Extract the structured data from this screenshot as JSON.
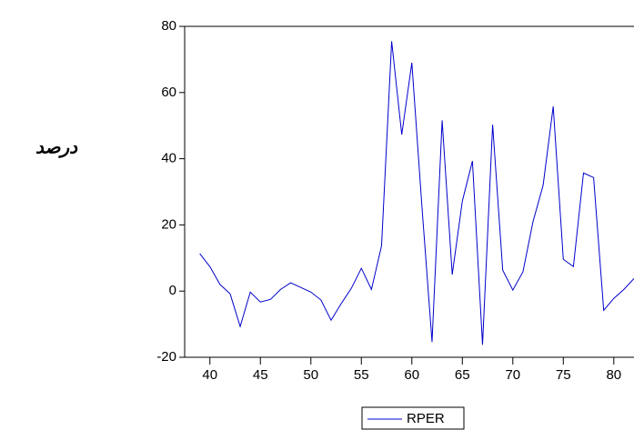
{
  "chart_data": {
    "type": "line",
    "y_label": "درصد",
    "x": [
      39,
      40,
      41,
      42,
      43,
      44,
      45,
      46,
      47,
      48,
      49,
      50,
      51,
      52,
      53,
      54,
      55,
      56,
      57,
      58,
      59,
      60,
      61,
      62,
      63,
      64,
      65,
      66,
      67,
      68,
      69,
      70,
      71,
      72,
      73,
      74,
      75,
      76,
      77,
      78,
      79,
      80,
      81,
      82
    ],
    "series": [
      {
        "name": "RPER",
        "color": "#0000cc",
        "values": [
          11.3,
          7.4,
          2,
          -0.8,
          -10.7,
          -0.3,
          -3.3,
          -2.5,
          0.5,
          2.5,
          1.1,
          -0.3,
          -2.7,
          -8.8,
          -3.8,
          0.8,
          6.9,
          0.5,
          13.7,
          75.5,
          47.3,
          69,
          25.5,
          -15.4,
          51.6,
          5,
          27.2,
          39.3,
          -16.2,
          50.3,
          6.3,
          0.3,
          5.8,
          21,
          32,
          55.8,
          9.6,
          7.4,
          35.7,
          34.3,
          -5.8,
          -2.2,
          0.5,
          3.8
        ]
      }
    ],
    "xlim": [
      37.5,
      82
    ],
    "xticks": [
      40,
      45,
      50,
      55,
      60,
      65,
      70,
      75,
      80
    ],
    "ylim": [
      -20,
      80
    ],
    "yticks": [
      -20,
      0,
      20,
      40,
      60,
      80
    ]
  }
}
